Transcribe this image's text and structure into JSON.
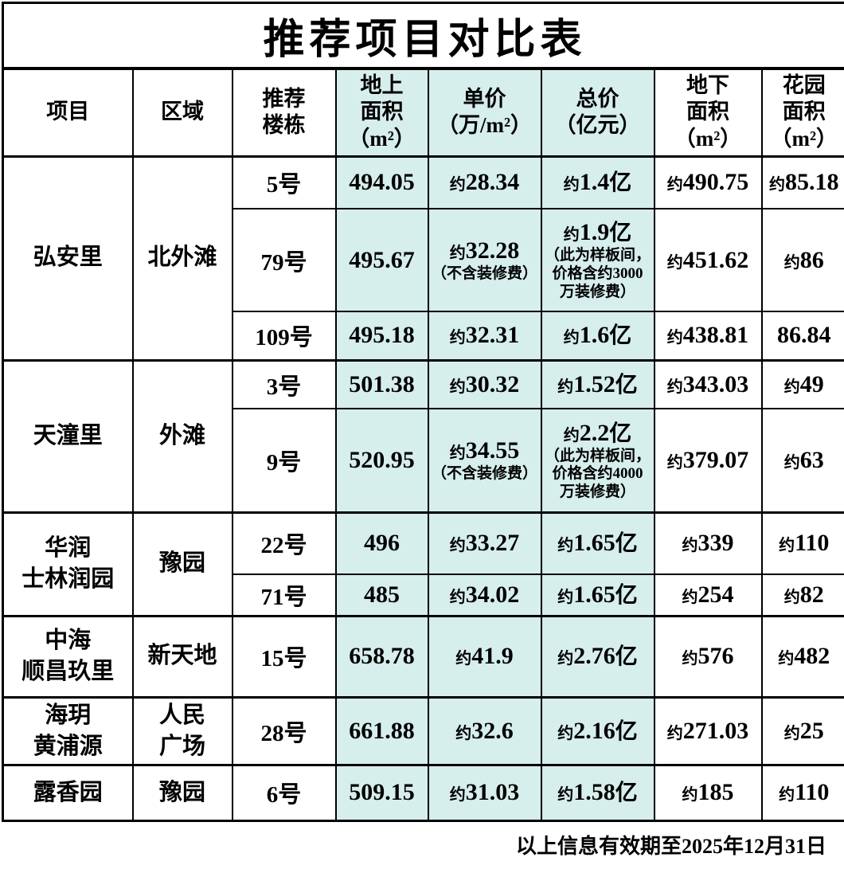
{
  "title": "推荐项目对比表",
  "highlight_color": "#d6eeec",
  "headers": [
    "项目",
    "区域",
    "推荐\n楼栋",
    "地上\n面积\n（m²）",
    "单价\n（万/m²）",
    "总价\n（亿元）",
    "地下\n面积\n（m²）",
    "花园\n面积\n（m²）"
  ],
  "groups": [
    {
      "project": "弘安里",
      "district": "北外滩",
      "rows": [
        {
          "building": "5号",
          "area": "494.05",
          "unit": "约28.34",
          "total": "约1.4亿",
          "under": "约490.75",
          "garden": "约85.18"
        },
        {
          "building": "79号",
          "area": "495.67",
          "unit": "约32.28",
          "unit_note": "（不含装修费）",
          "total": "约1.9亿",
          "total_note": "（此为样板间，\n价格含约3000\n万装修费）",
          "under": "约451.62",
          "garden": "约86"
        },
        {
          "building": "109号",
          "area": "495.18",
          "unit": "约32.31",
          "total": "约1.6亿",
          "under": "约438.81",
          "garden": "86.84"
        }
      ]
    },
    {
      "project": "天潼里",
      "district": "外滩",
      "rows": [
        {
          "building": "3号",
          "area": "501.38",
          "unit": "约30.32",
          "total": "约1.52亿",
          "under": "约343.03",
          "garden": "约49"
        },
        {
          "building": "9号",
          "area": "520.95",
          "unit": "约34.55",
          "unit_note": "（不含装修费）",
          "total": "约2.2亿",
          "total_note": "（此为样板间，\n价格含约4000\n万装修费）",
          "under": "约379.07",
          "garden": "约63"
        }
      ]
    },
    {
      "project": "华润\n士林润园",
      "district": "豫园",
      "rows": [
        {
          "building": "22号",
          "area": "496",
          "unit": "约33.27",
          "total": "约1.65亿",
          "under": "约339",
          "garden": "约110"
        },
        {
          "building": "71号",
          "area": "485",
          "unit": "约34.02",
          "total": "约1.65亿",
          "under": "约254",
          "garden": "约82"
        }
      ]
    },
    {
      "project": "中海\n顺昌玖里",
      "district": "新天地",
      "rows": [
        {
          "building": "15号",
          "area": "658.78",
          "unit": "约41.9",
          "total": "约2.76亿",
          "under": "约576",
          "garden": "约482"
        }
      ]
    },
    {
      "project": "海玥\n黄浦源",
      "district": "人民\n广场",
      "rows": [
        {
          "building": "28号",
          "area": "661.88",
          "unit": "约32.6",
          "total": "约2.16亿",
          "under": "约271.03",
          "garden": "约25"
        }
      ]
    },
    {
      "project": "露香园",
      "district": "豫园",
      "rows": [
        {
          "building": "6号",
          "area": "509.15",
          "unit": "约31.03",
          "total": "约1.58亿",
          "under": "约185",
          "garden": "约110"
        }
      ]
    }
  ],
  "footer": "以上信息有效期至2025年12月31日"
}
